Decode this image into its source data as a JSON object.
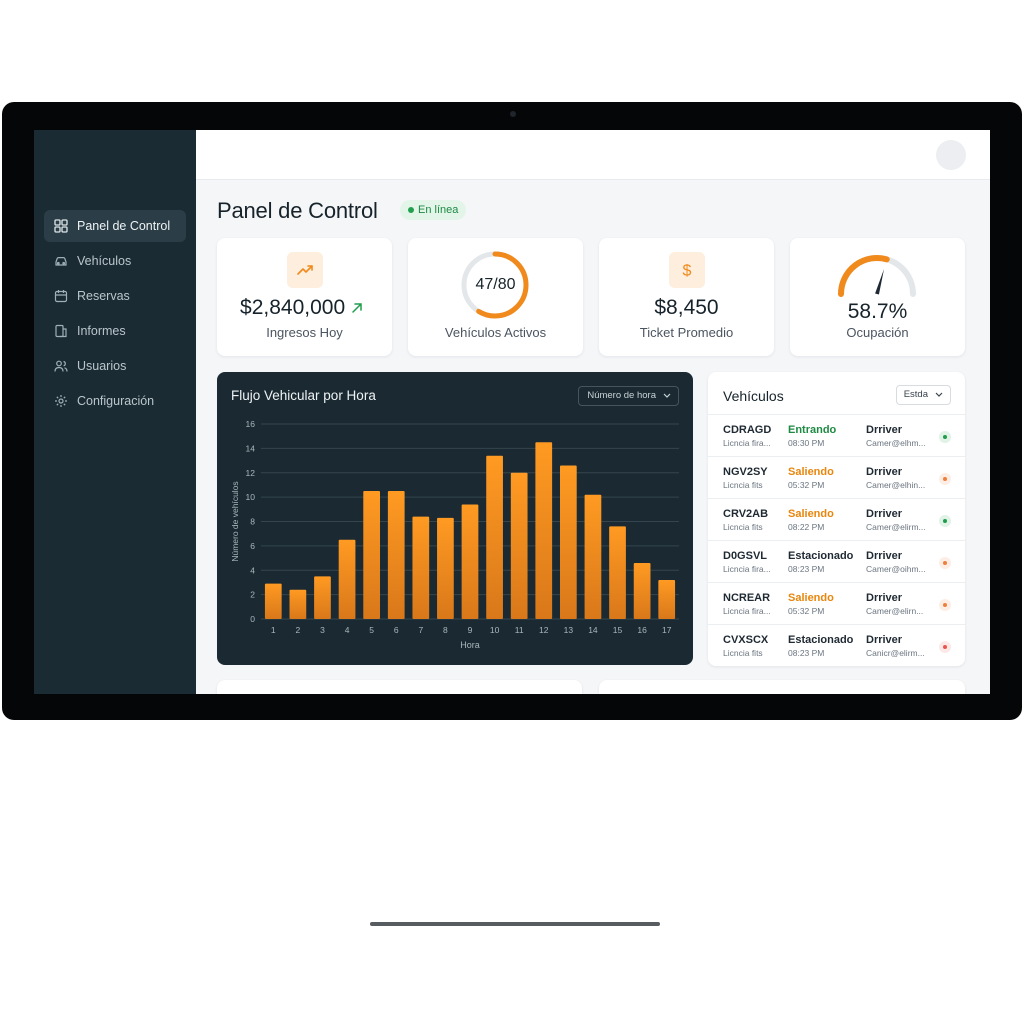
{
  "sidebar": {
    "items": [
      {
        "label": "Panel de Control",
        "icon": "dashboard-icon",
        "active": true
      },
      {
        "label": "Vehículos",
        "icon": "car-icon"
      },
      {
        "label": "Reservas",
        "icon": "calendar-icon"
      },
      {
        "label": "Informes",
        "icon": "report-icon"
      },
      {
        "label": "Usuarios",
        "icon": "users-icon"
      },
      {
        "label": "Configuración",
        "icon": "gear-icon"
      }
    ]
  },
  "header": {
    "title": "Panel de Control",
    "status": "En línea"
  },
  "kpis": {
    "income": {
      "value": "$2,840,000",
      "label": "Ingresos Hoy",
      "icon": "trend-up-icon"
    },
    "active_vehicles": {
      "value": "47/80",
      "label": "Vehículos Activos",
      "fraction": 0.5875
    },
    "ticket": {
      "value": "$8,450",
      "label": "Ticket Promedio",
      "icon": "dollar-icon"
    },
    "occupancy": {
      "value": "58.7%",
      "label": "Ocupación",
      "fraction": 0.587
    }
  },
  "chart": {
    "select_label": "Número de hora",
    "chart_data": {
      "type": "bar",
      "title": "Flujo Vehicular por Hora",
      "xlabel": "Hora",
      "ylabel": "Número de vehículos",
      "categories": [
        "1",
        "2",
        "3",
        "4",
        "5",
        "6",
        "7",
        "8",
        "9",
        "10",
        "11",
        "12",
        "13",
        "14",
        "15",
        "16",
        "17"
      ],
      "values": [
        2.9,
        2.4,
        3.5,
        6.5,
        10.5,
        10.5,
        8.4,
        8.3,
        9.4,
        13.4,
        12.0,
        14.5,
        12.6,
        10.2,
        7.6,
        4.6,
        3.2
      ],
      "ylim": [
        0,
        16
      ],
      "yticks": [
        0,
        2,
        4,
        6,
        8,
        10,
        12,
        14,
        16
      ],
      "grid": true
    }
  },
  "vehicles": {
    "title": "Vehículos",
    "filter_label": "Estda",
    "rows": [
      {
        "plate": "CDRAGD",
        "sub": "Licncia fira...",
        "status": "Entrando",
        "time": "08:30 PM",
        "driver": "Drriver",
        "email": "Camer@elhm...",
        "status_color": "#1f8a44"
      },
      {
        "plate": "NGV2SY",
        "sub": "Licncia fits",
        "status": "Saliendo",
        "time": "05:32 PM",
        "driver": "Drriver",
        "email": "Camer@elhin...",
        "status_color": "#e8860d"
      },
      {
        "plate": "CRV2AB",
        "sub": "Licncia fits",
        "status": "Saliendo",
        "time": "08:22 PM",
        "driver": "Drriver",
        "email": "Camer@elirm...",
        "status_color": "#e8860d"
      },
      {
        "plate": "D0GSVL",
        "sub": "Licncia fira...",
        "status": "Estacionado",
        "time": "08:23 PM",
        "driver": "Drriver",
        "email": "Camer@oihm...",
        "status_color": "#1f2933"
      },
      {
        "plate": "NCREAR",
        "sub": "Licncia fira...",
        "status": "Saliendo",
        "time": "05:32 PM",
        "driver": "Drriver",
        "email": "Camer@elirn...",
        "status_color": "#e8860d"
      },
      {
        "plate": "CVXSCX",
        "sub": "Licncia fits",
        "status": "Estacionado",
        "time": "08:23 PM",
        "driver": "Drriver",
        "email": "Canicr@elirm...",
        "status_color": "#1f2933"
      }
    ],
    "dot_colors": [
      "#1f9d4c",
      "#ef7f3c",
      "#1f9d4c",
      "#ef7f3c",
      "#ef7f3c",
      "#e8564a"
    ]
  },
  "colors": {
    "accent": "#f08a1c",
    "sidebar_bg": "#1b2b33",
    "chart_bg": "#1b2a32",
    "online": "#22a04f"
  }
}
